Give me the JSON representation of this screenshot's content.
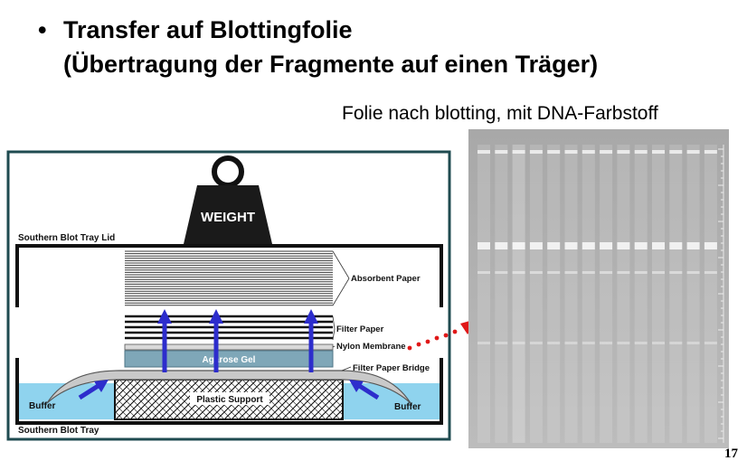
{
  "slide": {
    "bullet": "•",
    "title_line1": "Transfer auf Blottingfolie",
    "title_line2": "(Übertragung der Fragmente auf einen Träger)",
    "image_caption": "Folie nach blotting, mit DNA-Farbstoff",
    "page_number": "17"
  },
  "diagram": {
    "weight_label": "WEIGHT",
    "tray_lid_label": "Southern Blot Tray Lid",
    "absorbent_paper_label": "Absorbent Paper",
    "filter_paper_label": "Filter Paper",
    "nylon_membrane_label": "Nylon Membrane",
    "agarose_gel_label": "Agarose Gel",
    "filter_paper_bridge_label": "Filter Paper Bridge",
    "plastic_support_label": "Plastic Support",
    "buffer_left_label": "Buffer",
    "buffer_right_label": "Buffer",
    "tray_label": "Southern Blot Tray",
    "colors": {
      "frame": "#1f4b50",
      "buffer": "#8fd3ee",
      "gel": "#7fa7b8",
      "arrow": "#2d2dcc",
      "dots": "#e01818",
      "membrane_bg": "#b3b3b3"
    }
  },
  "membrane": {
    "lane_count": 14
  }
}
